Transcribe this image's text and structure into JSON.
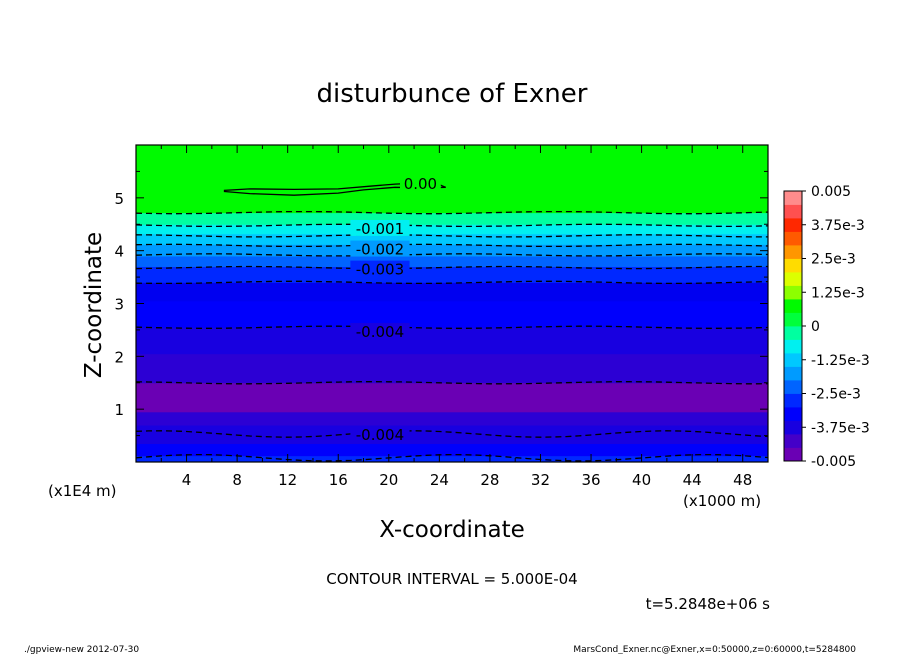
{
  "chart_data": {
    "type": "contour",
    "title": "disturbunce of Exner",
    "xlabel": "X-coordinate",
    "ylabel": "Z-coordinate",
    "x_unit_label": "(x1000 m)",
    "y_unit_label": "(x1E4 m)",
    "xlim": [
      0,
      50
    ],
    "ylim": [
      0,
      6
    ],
    "x_ticks": [
      4,
      8,
      12,
      16,
      20,
      24,
      28,
      32,
      36,
      40,
      44,
      48
    ],
    "y_ticks": [
      1,
      2,
      3,
      4,
      5
    ],
    "contour_interval_label": "CONTOUR INTERVAL = 5.000E-04",
    "time_label": "t=5.2848e+06 s",
    "contour_labels": [
      {
        "text": "0.00",
        "x": 22.5,
        "y": 5.28
      },
      {
        "text": "-0.001",
        "x": 19.3,
        "y": 4.43
      },
      {
        "text": "-0.002",
        "x": 19.3,
        "y": 4.04
      },
      {
        "text": "-0.003",
        "x": 19.3,
        "y": 3.66
      },
      {
        "text": "-0.004",
        "x": 19.3,
        "y": 2.48
      },
      {
        "text": "-0.004",
        "x": 19.3,
        "y": 0.53
      }
    ],
    "colorbar": {
      "tick_labels": [
        "0.005",
        "3.75e-3",
        "2.5e-3",
        "1.25e-3",
        "0",
        "-1.25e-3",
        "-2.5e-3",
        "-3.75e-3",
        "-0.005"
      ],
      "tick_values": [
        0.005,
        0.00375,
        0.0025,
        0.00125,
        0,
        -0.00125,
        -0.0025,
        -0.00375,
        -0.005
      ],
      "min": -0.005,
      "max": 0.005,
      "colors_bottom_to_top": [
        "#6a00b4",
        "#4400c8",
        "#1800e0",
        "#0000fc",
        "#0028ff",
        "#0064ff",
        "#009bff",
        "#00c8ff",
        "#00f0f0",
        "#00ffa0",
        "#00ff3c",
        "#00fa00",
        "#8cff00",
        "#dcff00",
        "#ffdc00",
        "#ff9600",
        "#ff5a00",
        "#ff2800",
        "#ff5050",
        "#ff8c8c"
      ]
    },
    "bands": [
      {
        "z_from": 0.0,
        "z_to": 0.12,
        "color": "#0028ff"
      },
      {
        "z_from": 0.12,
        "z_to": 0.35,
        "color": "#0000fc"
      },
      {
        "z_from": 0.35,
        "z_to": 0.7,
        "color": "#1800e0"
      },
      {
        "z_from": 0.7,
        "z_to": 0.95,
        "color": "#2c00d4"
      },
      {
        "z_from": 0.95,
        "z_to": 1.5,
        "color": "#6a00b4"
      },
      {
        "z_from": 1.5,
        "z_to": 2.05,
        "color": "#2c00d4"
      },
      {
        "z_from": 2.05,
        "z_to": 2.55,
        "color": "#1800e0"
      },
      {
        "z_from": 2.55,
        "z_to": 3.05,
        "color": "#0000fc"
      },
      {
        "z_from": 3.05,
        "z_to": 3.4,
        "color": "#0000f0"
      },
      {
        "z_from": 3.4,
        "z_to": 3.7,
        "color": "#0028ff"
      },
      {
        "z_from": 3.7,
        "z_to": 3.9,
        "color": "#0064ff"
      },
      {
        "z_from": 3.9,
        "z_to": 4.12,
        "color": "#009bff"
      },
      {
        "z_from": 4.12,
        "z_to": 4.32,
        "color": "#00c8ff"
      },
      {
        "z_from": 4.32,
        "z_to": 4.5,
        "color": "#00f0f0"
      },
      {
        "z_from": 4.5,
        "z_to": 4.72,
        "color": "#00ffa0"
      },
      {
        "z_from": 4.72,
        "z_to": 6.0,
        "color": "#00fa00"
      }
    ],
    "dashed_contours_z": [
      0.08,
      0.53,
      1.5,
      2.55,
      3.4,
      3.68,
      3.92,
      4.1,
      4.28,
      4.48,
      4.72
    ],
    "zero_contour": [
      [
        7.0,
        5.12
      ],
      [
        9.0,
        5.08
      ],
      [
        12.5,
        5.05
      ],
      [
        16.0,
        5.09
      ],
      [
        18.0,
        5.15
      ],
      [
        20.5,
        5.2
      ],
      [
        23.0,
        5.19
      ],
      [
        24.5,
        5.2
      ],
      [
        24.0,
        5.25
      ],
      [
        22.5,
        5.28
      ],
      [
        20.5,
        5.26
      ],
      [
        18.5,
        5.22
      ],
      [
        16.0,
        5.17
      ],
      [
        12.5,
        5.16
      ],
      [
        9.0,
        5.17
      ],
      [
        7.0,
        5.14
      ]
    ]
  },
  "footer": {
    "program": "./gpview-new   2012-07-30",
    "source": "MarsCond_Exner.nc@Exner,x=0:50000,z=0:60000,t=5284800"
  }
}
